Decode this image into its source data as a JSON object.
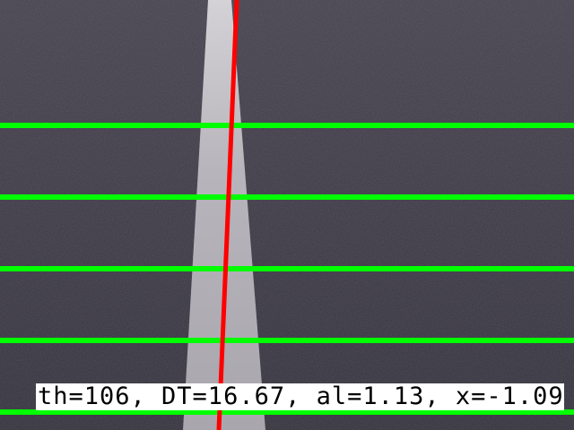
{
  "overlay": {
    "readout_text": "th=106, DT=16.67, al=1.13, x=-1.09"
  },
  "colors": {
    "asphalt": "#3f3b4a",
    "lane_marking": "#b9b6bd",
    "horizontal_guides": "#00ff00",
    "detected_line": "#ff0000",
    "readout_background": "#ffffff",
    "readout_text": "#000000"
  }
}
